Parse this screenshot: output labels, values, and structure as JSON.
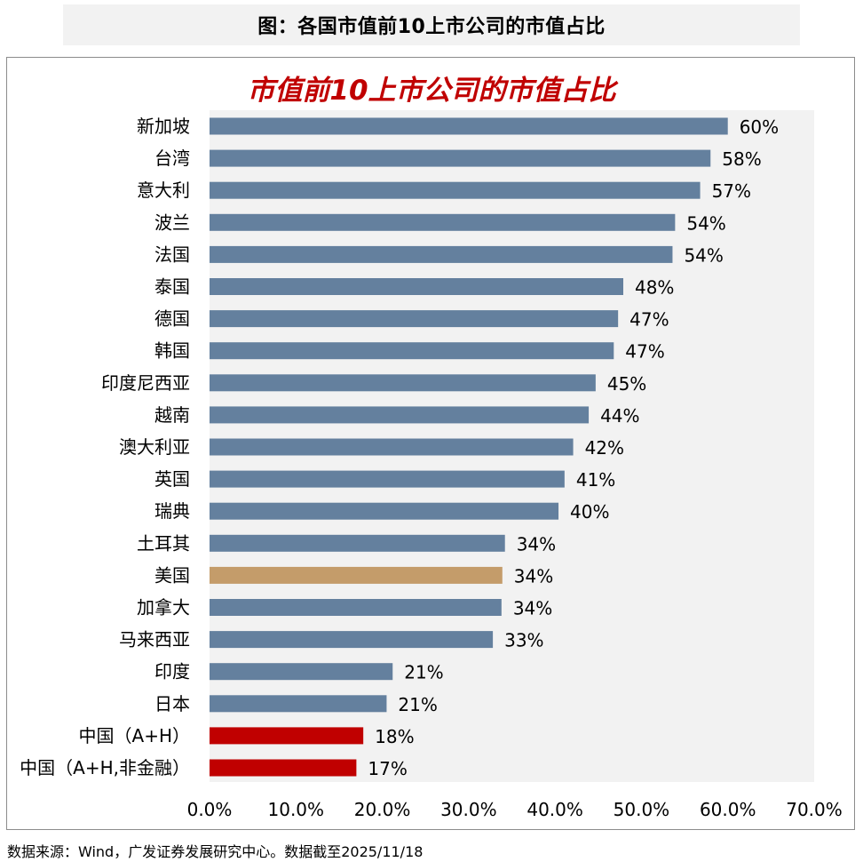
{
  "header": {
    "title": "图：各国市值前10上市公司的市值占比"
  },
  "source": "数据来源：Wind，广发证券发展研究中心。数据截至2025/11/18",
  "colors": {
    "default": "#64809e",
    "usa": "#c49c6a",
    "china": "#c00000",
    "plot_bg": "#f2f2f2"
  },
  "chart_data": {
    "type": "bar",
    "orientation": "horizontal",
    "title": "市值前10上市公司的市值占比",
    "xlim": [
      0,
      70
    ],
    "xticks": [
      "0.0%",
      "10.0%",
      "20.0%",
      "30.0%",
      "40.0%",
      "50.0%",
      "60.0%",
      "70.0%"
    ],
    "grid": false,
    "bars": [
      {
        "label": "新加坡",
        "value": 60,
        "text": "60%",
        "color": "default"
      },
      {
        "label": "台湾",
        "value": 58,
        "text": "58%",
        "color": "default"
      },
      {
        "label": "意大利",
        "value": 56.8,
        "text": "57%",
        "color": "default"
      },
      {
        "label": "波兰",
        "value": 53.9,
        "text": "54%",
        "color": "default"
      },
      {
        "label": "法国",
        "value": 53.6,
        "text": "54%",
        "color": "default"
      },
      {
        "label": "泰国",
        "value": 47.9,
        "text": "48%",
        "color": "default"
      },
      {
        "label": "德国",
        "value": 47.3,
        "text": "47%",
        "color": "default"
      },
      {
        "label": "韩国",
        "value": 46.8,
        "text": "47%",
        "color": "default"
      },
      {
        "label": "印度尼西亚",
        "value": 44.7,
        "text": "45%",
        "color": "default"
      },
      {
        "label": "越南",
        "value": 43.9,
        "text": "44%",
        "color": "default"
      },
      {
        "label": "澳大利亚",
        "value": 42.1,
        "text": "42%",
        "color": "default"
      },
      {
        "label": "英国",
        "value": 41.1,
        "text": "41%",
        "color": "default"
      },
      {
        "label": "瑞典",
        "value": 40.4,
        "text": "40%",
        "color": "default"
      },
      {
        "label": "土耳其",
        "value": 34.2,
        "text": "34%",
        "color": "default"
      },
      {
        "label": "美国",
        "value": 33.9,
        "text": "34%",
        "color": "usa"
      },
      {
        "label": "加拿大",
        "value": 33.8,
        "text": "34%",
        "color": "default"
      },
      {
        "label": "马来西亚",
        "value": 32.8,
        "text": "33%",
        "color": "default"
      },
      {
        "label": "印度",
        "value": 21.2,
        "text": "21%",
        "color": "default"
      },
      {
        "label": "日本",
        "value": 20.5,
        "text": "21%",
        "color": "default"
      },
      {
        "label": "中国（A+H）",
        "value": 17.8,
        "text": "18%",
        "color": "china"
      },
      {
        "label": "中国（A+H,非金融）",
        "value": 17.0,
        "text": "17%",
        "color": "china"
      }
    ]
  }
}
